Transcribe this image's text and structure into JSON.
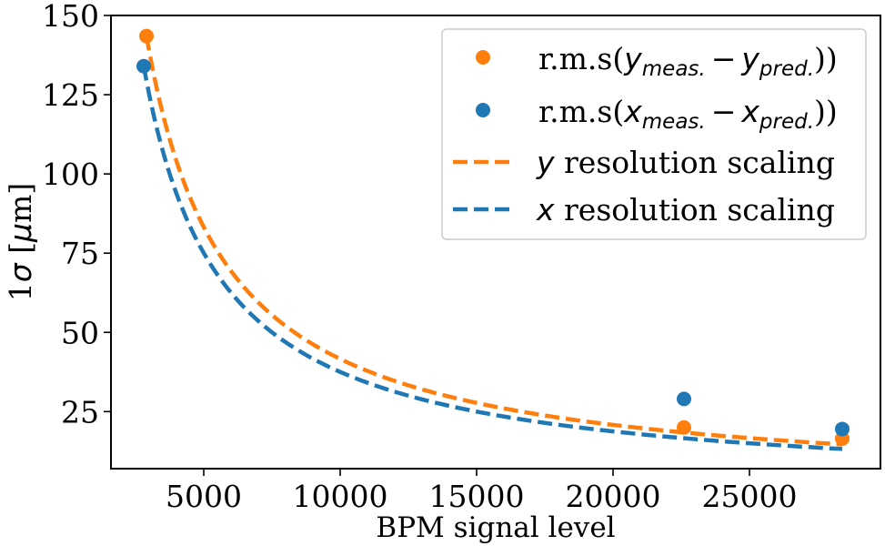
{
  "chart_data": {
    "type": "scatter",
    "title": "",
    "xlabel": "BPM signal level",
    "ylabel_prefix": "1",
    "ylabel_sigma": "σ",
    "ylabel_unit_open": " [",
    "ylabel_mu": "μ",
    "ylabel_unit_rest": "m]",
    "xlim": [
      1600,
      29800
    ],
    "ylim": [
      7,
      150
    ],
    "xticks": [
      5000,
      10000,
      15000,
      20000,
      25000
    ],
    "yticks": [
      25,
      50,
      75,
      100,
      125,
      150
    ],
    "grid": false,
    "legend_position": "top-right",
    "series": [
      {
        "name": "r.m.s(y_meas. − y_pred.))",
        "kind": "points",
        "color": "#ff7f0e",
        "points": [
          [
            2900,
            143.5
          ],
          [
            22600,
            20
          ],
          [
            28400,
            16.5
          ]
        ]
      },
      {
        "name": "r.m.s(x_meas. − x_pred.))",
        "kind": "points",
        "color": "#1f77b4",
        "points": [
          [
            2800,
            134
          ],
          [
            22600,
            29
          ],
          [
            28400,
            19.5
          ]
        ]
      },
      {
        "name": "y resolution scaling",
        "kind": "dashed-line",
        "color": "#ff7f0e",
        "model": "a/x",
        "coefficient": 416150,
        "x_range": [
          2900,
          28400
        ]
      },
      {
        "name": "x resolution scaling",
        "kind": "dashed-line",
        "color": "#1f77b4",
        "model": "a/x",
        "coefficient": 375200,
        "x_range": [
          2800,
          28400
        ]
      }
    ],
    "legend": {
      "rms_text": "r.m.s(",
      "close_text": "))",
      "minus": "−",
      "y_var": "y",
      "x_var": "x",
      "meas_sub": "meas.",
      "pred_sub": "pred.",
      "resolution_text": " resolution scaling"
    }
  }
}
